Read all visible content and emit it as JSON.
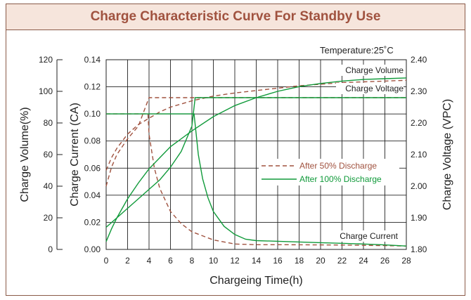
{
  "chart_data": {
    "type": "line",
    "title": "Charge Characteristic Curve For Standby Use",
    "annotation": "Temperature:25˚C",
    "xlabel": "Chargeing Time(h)",
    "xlim": [
      0,
      28
    ],
    "xticks": [
      0,
      2,
      4,
      6,
      8,
      10,
      12,
      14,
      16,
      18,
      20,
      22,
      24,
      26,
      28
    ],
    "axes": {
      "volume": {
        "label": "Charge Volume(%)",
        "ticks": [
          "0",
          "20",
          "40",
          "60",
          "80",
          "100",
          "120"
        ],
        "lim": [
          0,
          120
        ]
      },
      "current": {
        "label": "Charge Current (CA)",
        "ticks": [
          "0.00",
          "0.02",
          "0.04",
          "0.06",
          "0.08",
          "0.10",
          "0.12",
          "0.14"
        ],
        "lim": [
          0,
          0.14
        ]
      },
      "voltage": {
        "label": "Charge Voltage (VPC)",
        "ticks": [
          "1.80",
          "1.90",
          "2.00",
          "2.10",
          "2.20",
          "2.30",
          "2.40"
        ],
        "lim": [
          1.8,
          2.4
        ]
      }
    },
    "curve_labels": {
      "volume": "Charge Volume",
      "voltage": "Charge Voltage",
      "current": "Charge Current"
    },
    "legend": {
      "placement": "center-right",
      "items": [
        {
          "label": "After 50% Discharge",
          "style": "dashed",
          "color": "#a0523f"
        },
        {
          "label": "After 100% Discharge",
          "style": "solid",
          "color": "#109a3a"
        }
      ]
    },
    "series": [
      {
        "name": "After 50% Discharge",
        "quantity": "Charge Volume",
        "axis": "volume",
        "x": [
          0,
          0.5,
          1,
          2,
          3,
          4,
          5,
          6,
          8,
          10,
          12,
          14,
          16,
          18,
          20,
          22,
          24,
          26,
          28
        ],
        "y": [
          50,
          58,
          64,
          73,
          79,
          83,
          87,
          90,
          94,
          97,
          99,
          100.5,
          102,
          103.5,
          104.5,
          105.5,
          106,
          106.5,
          107
        ]
      },
      {
        "name": "After 50% Discharge",
        "quantity": "Charge Voltage",
        "axis": "voltage",
        "x": [
          0,
          0.5,
          1,
          2,
          3,
          4,
          6,
          8,
          10,
          12,
          14,
          16,
          18,
          20,
          22,
          24,
          26,
          28
        ],
        "y": [
          2.0,
          2.06,
          2.1,
          2.15,
          2.19,
          2.28,
          2.28,
          2.28,
          2.28,
          2.28,
          2.28,
          2.28,
          2.28,
          2.28,
          2.28,
          2.28,
          2.28,
          2.28
        ]
      },
      {
        "name": "After 50% Discharge",
        "quantity": "Charge Current",
        "axis": "current",
        "x": [
          0,
          3.9,
          4,
          4.5,
          5,
          6,
          7,
          8,
          10,
          12,
          14,
          16,
          18,
          20,
          22,
          24,
          26,
          28
        ],
        "y": [
          0.1,
          0.1,
          0.085,
          0.06,
          0.045,
          0.028,
          0.019,
          0.013,
          0.007,
          0.004,
          0.0035,
          0.0035,
          0.0034,
          0.0033,
          0.0032,
          0.003,
          0.0028,
          0.0025
        ]
      },
      {
        "name": "After 100% Discharge",
        "quantity": "Charge Volume",
        "axis": "volume",
        "x": [
          0,
          0.5,
          1,
          2,
          3,
          4,
          5,
          6,
          8,
          10,
          12,
          14,
          16,
          18,
          20,
          22,
          24,
          26,
          28
        ],
        "y": [
          5,
          13,
          20,
          32,
          42,
          51,
          58,
          65,
          75,
          84,
          91,
          96,
          100,
          103,
          105,
          106.5,
          107.5,
          108,
          108.5
        ]
      },
      {
        "name": "After 100% Discharge",
        "quantity": "Charge Voltage",
        "axis": "voltage",
        "x": [
          0,
          1,
          2,
          3,
          4,
          5,
          6,
          7,
          8,
          8.3,
          10,
          12,
          14,
          16,
          18,
          20,
          22,
          24,
          26,
          28
        ],
        "y": [
          1.87,
          1.9,
          1.93,
          1.96,
          1.99,
          2.02,
          2.06,
          2.11,
          2.19,
          2.28,
          2.28,
          2.28,
          2.28,
          2.28,
          2.28,
          2.28,
          2.28,
          2.28,
          2.28,
          2.28
        ]
      },
      {
        "name": "After 100% Discharge",
        "quantity": "Charge Current",
        "axis": "current",
        "x": [
          0,
          8.2,
          8.4,
          8.6,
          9,
          9.5,
          10,
          11,
          12,
          13,
          14,
          16,
          18,
          20,
          22,
          24,
          26,
          28
        ],
        "y": [
          0.1,
          0.1,
          0.085,
          0.07,
          0.052,
          0.038,
          0.028,
          0.017,
          0.011,
          0.0075,
          0.0065,
          0.006,
          0.0055,
          0.005,
          0.0045,
          0.004,
          0.0033,
          0.0025
        ]
      }
    ]
  }
}
